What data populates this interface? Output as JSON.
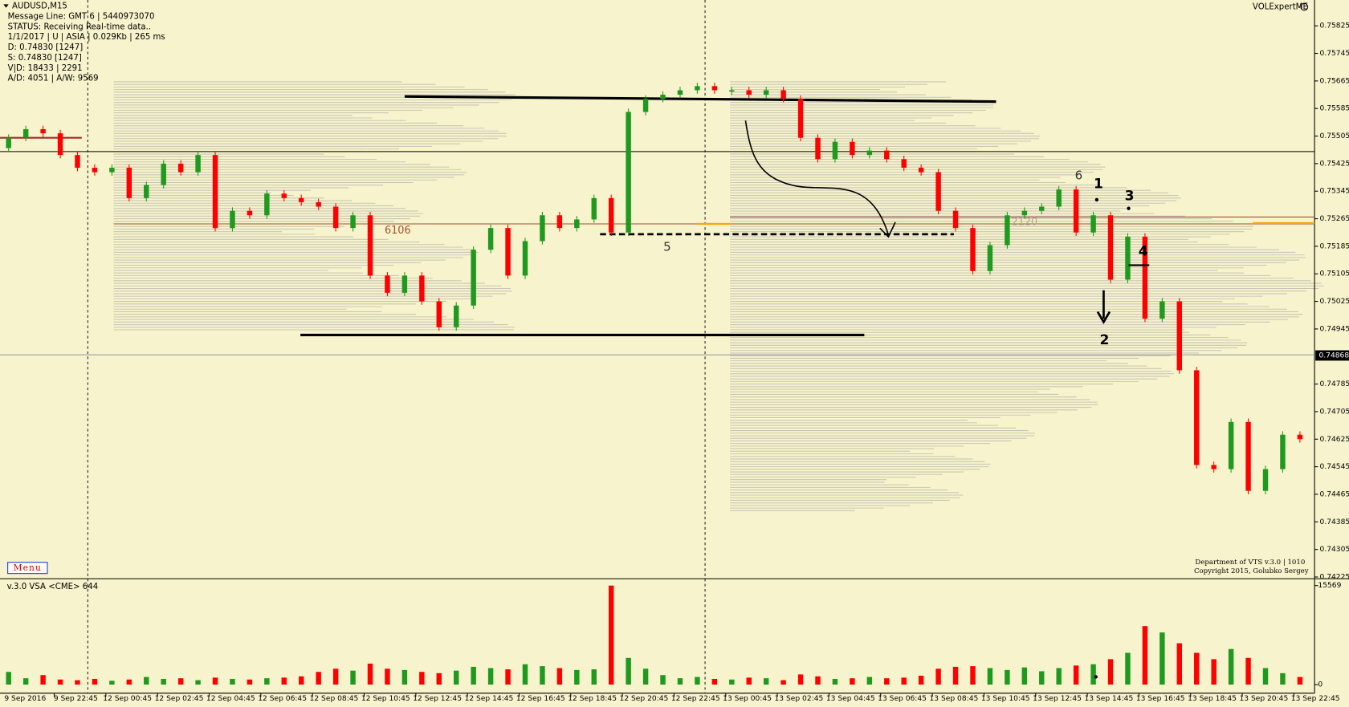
{
  "chart_data": {
    "type": "candlestick",
    "info_lines": [
      "AUDUSD,M15",
      "Message Line: GMT 6 | 5440973070",
      "STATUS:  Receiving Real-time data..",
      "1/1/2017 | U | ASIA | 0.029Kb | 265 ms",
      "D: 0.74830  [1247]",
      "S: 0.74830  [1247]",
      "V|D: 18433 | 2291",
      "A/D: 4051 | A/W: 9569"
    ],
    "brand": "VOLExpertME",
    "menu": "Menu",
    "footer_lines": [
      "Department of VTS  v.3.0 | 1010",
      "Copyright 2015, Golubko Sergey"
    ],
    "volume_title": "v.3.0 VSA <CME> 644",
    "open": [
      0.7547,
      0.755,
      0.75525,
      0.75513,
      0.7545,
      0.75413,
      0.754,
      0.75413,
      0.75325,
      0.75363,
      0.75425,
      0.754,
      0.7545,
      0.75238,
      0.75288,
      0.75275,
      0.75338,
      0.75325,
      0.75313,
      0.753,
      0.75238,
      0.75275,
      0.751,
      0.7505,
      0.751,
      0.75025,
      0.7495,
      0.75013,
      0.75175,
      0.75238,
      0.751,
      0.752,
      0.75275,
      0.75238,
      0.75263,
      0.75325,
      0.75225,
      0.75575,
      0.75613,
      0.75625,
      0.75638,
      0.7565,
      0.75638,
      0.75638,
      0.75625,
      0.75638,
      0.75613,
      0.755,
      0.75438,
      0.75488,
      0.7545,
      0.75463,
      0.75438,
      0.75413,
      0.754,
      0.75288,
      0.75238,
      0.75113,
      0.75188,
      0.75275,
      0.75288,
      0.753,
      0.7535,
      0.75225,
      0.75275,
      0.75088,
      0.75213,
      0.74975,
      0.75025,
      0.74825,
      0.7455,
      0.74538,
      0.74675,
      0.74475,
      0.74538,
      0.74638
    ],
    "close": [
      0.755,
      0.75525,
      0.75513,
      0.7545,
      0.75413,
      0.754,
      0.75413,
      0.75325,
      0.75363,
      0.75425,
      0.754,
      0.7545,
      0.75238,
      0.75288,
      0.75275,
      0.75338,
      0.75325,
      0.75313,
      0.753,
      0.75238,
      0.75275,
      0.751,
      0.7505,
      0.751,
      0.75025,
      0.7495,
      0.75013,
      0.75175,
      0.75238,
      0.751,
      0.752,
      0.75275,
      0.75238,
      0.75263,
      0.75325,
      0.75225,
      0.75575,
      0.75613,
      0.75625,
      0.75638,
      0.7565,
      0.75638,
      0.75638,
      0.75625,
      0.75638,
      0.75613,
      0.755,
      0.75438,
      0.75488,
      0.7545,
      0.75463,
      0.75438,
      0.75413,
      0.754,
      0.75288,
      0.75238,
      0.75113,
      0.75188,
      0.75275,
      0.75288,
      0.753,
      0.7535,
      0.75225,
      0.75275,
      0.75088,
      0.75213,
      0.74975,
      0.75025,
      0.74825,
      0.7455,
      0.74538,
      0.74675,
      0.74475,
      0.74538,
      0.74638,
      0.74625
    ],
    "volume": [
      2000,
      1000,
      1500,
      800,
      700,
      900,
      600,
      800,
      1200,
      900,
      1000,
      700,
      1100,
      900,
      800,
      1000,
      1100,
      1300,
      2000,
      2500,
      2200,
      3300,
      2500,
      2300,
      2000,
      1800,
      2200,
      2800,
      2600,
      2400,
      3200,
      2900,
      2600,
      2300,
      2400,
      15569,
      4200,
      2500,
      1500,
      1000,
      1200,
      900,
      800,
      1100,
      1000,
      700,
      1600,
      1300,
      900,
      1000,
      1200,
      1000,
      1100,
      1400,
      2500,
      2800,
      2900,
      2600,
      2300,
      2700,
      2100,
      2600,
      3000,
      3200,
      4000,
      5000,
      9200,
      8200,
      6500,
      5000,
      4000,
      5600,
      4200,
      2600,
      1800,
      1200
    ],
    "colors": {
      "up": "#1e9a1e",
      "down": "#ff0000"
    },
    "ylim": [
      0.7422,
      0.759
    ],
    "yticks": [
      0.75825,
      0.75745,
      0.75665,
      0.75585,
      0.75505,
      0.75425,
      0.75345,
      0.75265,
      0.75185,
      0.75105,
      0.75025,
      0.74945,
      0.74785,
      0.74705,
      0.74625,
      0.74545,
      0.74465,
      0.74385,
      0.74305,
      0.74225
    ],
    "current_price": 0.74868,
    "volume_lim": [
      0,
      15569
    ],
    "volume_ticks": [
      15569,
      0
    ],
    "x_labels": [
      "9 Sep 2016",
      "9 Sep 22:45",
      "12 Sep 00:45",
      "12 Sep 02:45",
      "12 Sep 04:45",
      "12 Sep 06:45",
      "12 Sep 08:45",
      "12 Sep 10:45",
      "12 Sep 12:45",
      "12 Sep 14:45",
      "12 Sep 16:45",
      "12 Sep 18:45",
      "12 Sep 20:45",
      "12 Sep 22:45",
      "13 Sep 00:45",
      "13 Sep 02:45",
      "13 Sep 04:45",
      "13 Sep 06:45",
      "13 Sep 08:45",
      "13 Sep 10:45",
      "13 Sep 12:45",
      "13 Sep 14:45",
      "13 Sep 16:45",
      "13 Sep 18:45",
      "13 Sep 20:45",
      "13 Sep 22:45"
    ],
    "annotations": [
      "6106",
      "5",
      "6",
      "1",
      "3",
      "4",
      "2",
      "2120"
    ]
  }
}
